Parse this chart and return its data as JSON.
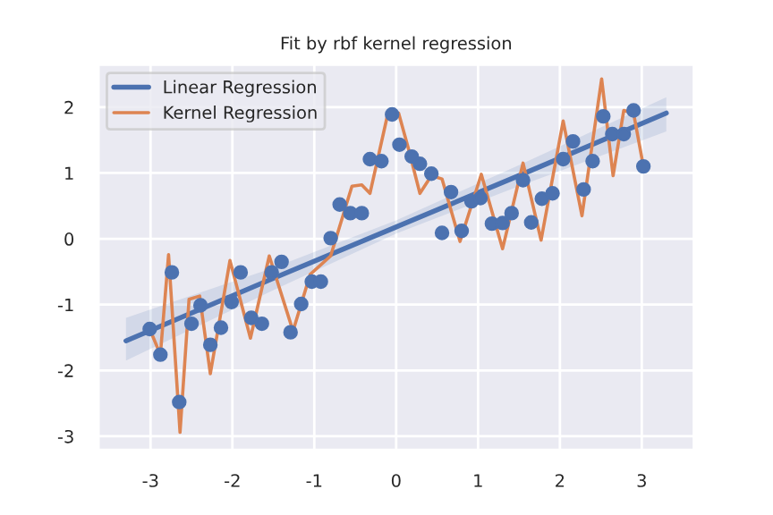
{
  "chart_data": {
    "type": "scatter",
    "title": "Fit by rbf kernel regression",
    "xlim": [
      -3.64,
      3.64
    ],
    "ylim": [
      -3.21,
      2.65
    ],
    "xticks": [
      -3,
      -2,
      -1,
      0,
      1,
      2,
      3
    ],
    "yticks": [
      -3,
      -2,
      -1,
      0,
      1,
      2
    ],
    "grid": true,
    "legend": "top left",
    "series": [
      {
        "color": "#4c72b0",
        "marker": "circle",
        "x": [
          -3.01,
          -2.88,
          -2.74,
          -2.65,
          -2.5,
          -2.39,
          -2.27,
          -2.14,
          -2.01,
          -1.9,
          -1.77,
          -1.64,
          -1.52,
          -1.4,
          -1.29,
          -1.16,
          -1.03,
          -0.92,
          -0.8,
          -0.69,
          -0.56,
          -0.42,
          -0.32,
          -0.18,
          -0.05,
          0.04,
          0.19,
          0.29,
          0.43,
          0.56,
          0.67,
          0.8,
          0.92,
          1.03,
          1.17,
          1.3,
          1.41,
          1.55,
          1.65,
          1.78,
          1.91,
          2.04,
          2.16,
          2.29,
          2.4,
          2.53,
          2.64,
          2.78,
          2.9,
          3.02
        ],
        "values": [
          -1.37,
          -1.76,
          -0.51,
          -2.48,
          -1.29,
          -1.01,
          -1.61,
          -1.35,
          -0.96,
          -0.51,
          -1.2,
          -1.29,
          -0.51,
          -0.35,
          -1.42,
          -0.99,
          -0.65,
          -0.65,
          0.01,
          0.52,
          0.39,
          0.39,
          1.21,
          1.18,
          1.89,
          1.43,
          1.25,
          1.14,
          0.99,
          0.09,
          0.71,
          0.12,
          0.57,
          0.62,
          0.23,
          0.24,
          0.39,
          0.89,
          0.25,
          0.61,
          0.69,
          1.21,
          1.48,
          0.75,
          1.18,
          1.86,
          1.59,
          1.59,
          1.95,
          1.1
        ]
      },
      {
        "type": "line",
        "name": "Linear Regression",
        "color": "#4c72b0",
        "x": [
          -3.3,
          -1.5,
          0,
          1.5,
          3.3
        ],
        "values": [
          -1.55,
          -0.6,
          0.18,
          0.96,
          1.91
        ],
        "lower": [
          -1.85,
          -0.78,
          0.08,
          0.8,
          1.63
        ],
        "upper": [
          -1.2,
          -0.44,
          0.28,
          1.12,
          2.15
        ]
      },
      {
        "type": "line",
        "name": "Kernel Regression",
        "color": "#dd8452",
        "x": [
          -3.01,
          -2.88,
          -2.78,
          -2.64,
          -2.53,
          -2.4,
          -2.27,
          -2.03,
          -1.78,
          -1.55,
          -1.26,
          -1.05,
          -0.8,
          -0.54,
          -0.42,
          -0.32,
          -0.1,
          0.03,
          0.15,
          0.29,
          0.43,
          0.56,
          0.78,
          1.04,
          1.3,
          1.55,
          1.77,
          2.04,
          2.27,
          2.51,
          2.65,
          2.78,
          2.9,
          3.02
        ],
        "values": [
          -1.37,
          -1.76,
          -0.24,
          -2.94,
          -0.92,
          -0.87,
          -2.05,
          -0.33,
          -1.51,
          -0.26,
          -1.4,
          -0.54,
          -0.26,
          0.8,
          0.82,
          0.69,
          1.91,
          1.91,
          1.37,
          0.69,
          0.96,
          0.91,
          -0.04,
          0.98,
          -0.15,
          1.15,
          -0.02,
          1.79,
          0.35,
          2.43,
          0.96,
          1.95,
          1.91,
          1.1
        ]
      }
    ]
  }
}
